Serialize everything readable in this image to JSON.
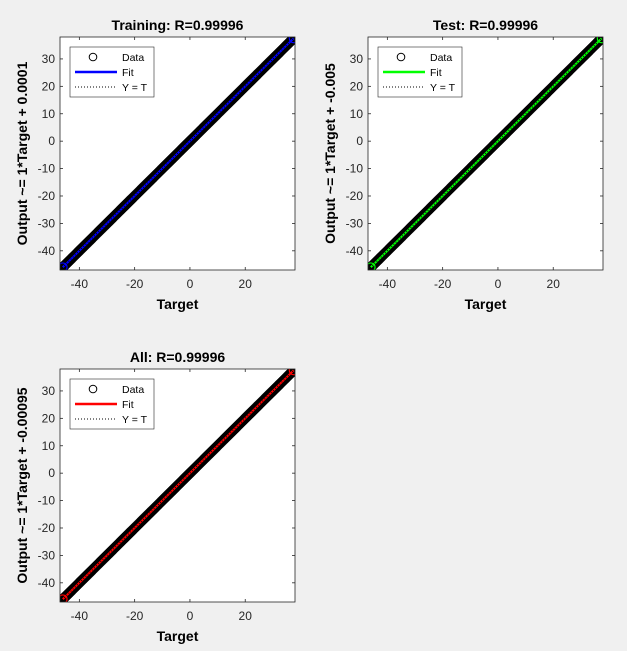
{
  "figure": {
    "background": "#f0f0f0",
    "axes_color": "#262626",
    "data_marker_color": "#000000"
  },
  "chart_data": [
    {
      "type": "scatter",
      "id": "training",
      "title": "Training: R=0.99996",
      "xlabel": "Target",
      "ylabel": "Output ~= 1*Target + 0.0001",
      "xlim": [
        -47,
        38
      ],
      "ylim": [
        -47,
        38
      ],
      "xticks": [
        -40,
        -20,
        0,
        20
      ],
      "yticks": [
        -40,
        -30,
        -20,
        -10,
        0,
        10,
        20,
        30
      ],
      "data_range": [
        -46,
        37.5
      ],
      "fit": {
        "slope": 1,
        "intercept": 0.0001,
        "color": "#0000ff"
      },
      "legend": {
        "placement": "top-left",
        "entries": [
          {
            "label": "Data",
            "kind": "marker"
          },
          {
            "label": "Fit",
            "kind": "line"
          },
          {
            "label": "Y = T",
            "kind": "dotted"
          }
        ]
      }
    },
    {
      "type": "scatter",
      "id": "test",
      "title": "Test: R=0.99996",
      "xlabel": "Target",
      "ylabel": "Output ~= 1*Target + -0.005",
      "xlim": [
        -47,
        38
      ],
      "ylim": [
        -47,
        38
      ],
      "xticks": [
        -40,
        -20,
        0,
        20
      ],
      "yticks": [
        -40,
        -30,
        -20,
        -10,
        0,
        10,
        20,
        30
      ],
      "data_range": [
        -46,
        37.5
      ],
      "fit": {
        "slope": 1,
        "intercept": -0.005,
        "color": "#00ff00"
      },
      "legend": {
        "placement": "top-left",
        "entries": [
          {
            "label": "Data",
            "kind": "marker"
          },
          {
            "label": "Fit",
            "kind": "line"
          },
          {
            "label": "Y = T",
            "kind": "dotted"
          }
        ]
      }
    },
    {
      "type": "scatter",
      "id": "all",
      "title": "All: R=0.99996",
      "xlabel": "Target",
      "ylabel": "Output ~= 1*Target + -0.00095",
      "xlim": [
        -47,
        38
      ],
      "ylim": [
        -47,
        38
      ],
      "xticks": [
        -40,
        -20,
        0,
        20
      ],
      "yticks": [
        -40,
        -30,
        -20,
        -10,
        0,
        10,
        20,
        30
      ],
      "data_range": [
        -46,
        37.5
      ],
      "fit": {
        "slope": 1,
        "intercept": -0.00095,
        "color": "#ff0000"
      },
      "legend": {
        "placement": "top-left",
        "entries": [
          {
            "label": "Data",
            "kind": "marker"
          },
          {
            "label": "Fit",
            "kind": "line"
          },
          {
            "label": "Y = T",
            "kind": "dotted"
          }
        ]
      }
    }
  ]
}
